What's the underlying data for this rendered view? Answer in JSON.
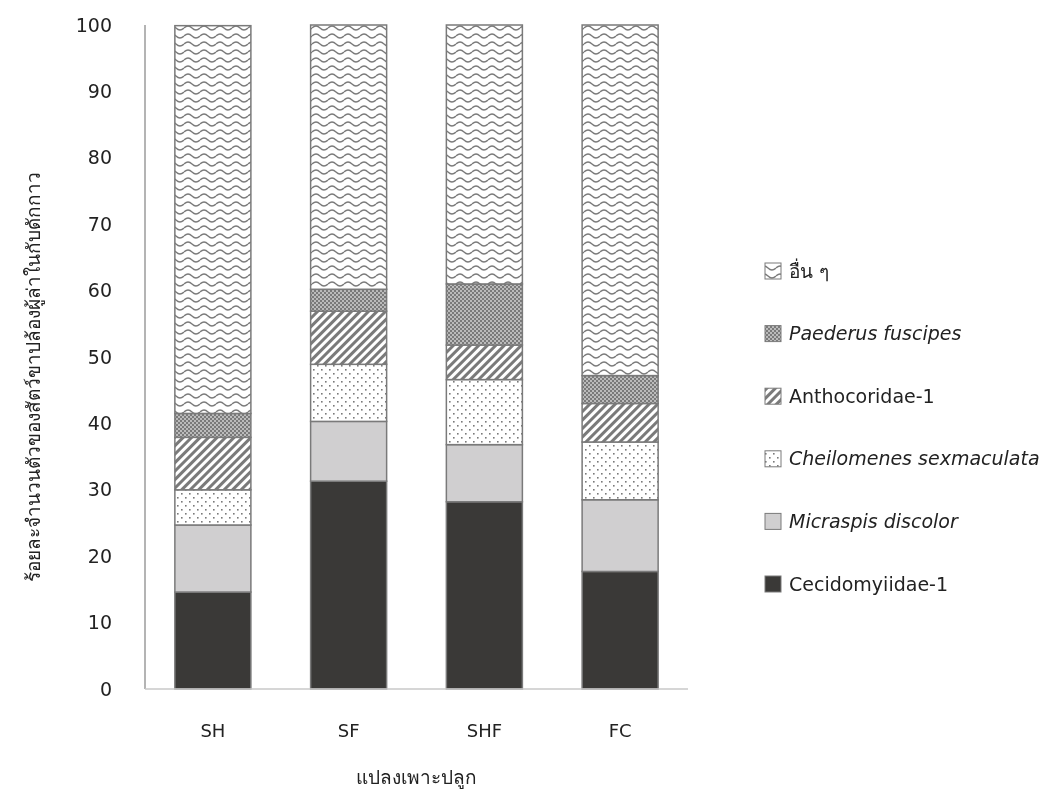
{
  "chart_data": {
    "type": "bar",
    "stacked": true,
    "xlabel": "แปลงเพาะปลูก",
    "ylabel": "ร้อยละจำนวนตัวของสัตว์ขาปล้องผู้ล่าในกับดักกาว",
    "categories": [
      "SH",
      "SF",
      "SHF",
      "FC"
    ],
    "ylim": [
      0,
      100
    ],
    "yticks": [
      0,
      10,
      20,
      30,
      40,
      50,
      60,
      70,
      80,
      90,
      100
    ],
    "legend": "right",
    "grid": false,
    "series": [
      {
        "name": "Cecidomyiidae-1",
        "color": "#3a3937",
        "values": [
          14.6,
          31.3,
          28.2,
          17.7
        ]
      },
      {
        "name": "Micraspis discolor",
        "color": "#d0cfd0",
        "values": [
          10.1,
          9.0,
          8.6,
          10.8
        ]
      },
      {
        "name": "Cheilomenes sexmaculata",
        "color": "#7a7a7a",
        "values": [
          5.3,
          8.6,
          9.8,
          8.7
        ]
      },
      {
        "name": "Anthocoridae-1",
        "color": "#7a7a7a",
        "values": [
          7.9,
          8.0,
          5.2,
          5.8
        ]
      },
      {
        "name": "Paederus fuscipes",
        "color": "#7a7a7a",
        "values": [
          3.6,
          3.3,
          9.2,
          4.2
        ]
      },
      {
        "name": "อื่น ๆ",
        "color": "#7a7a7a",
        "values": [
          58.4,
          39.8,
          39.0,
          52.8
        ]
      }
    ]
  }
}
